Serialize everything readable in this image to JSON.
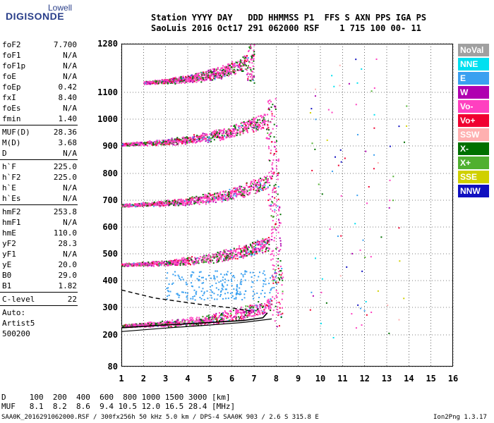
{
  "logo": {
    "top": "Lowell",
    "bottom": "DIGISONDE"
  },
  "header": {
    "line1": "Station YYYY DAY   DDD HHMMSS P1  FFS S AXN PPS IGA PS",
    "line2": "SaoLuis 2016 Oct17 291 062000 RSF    1 715 100 00- 11"
  },
  "scaled": [
    {
      "k": "foF2",
      "v": "7.700"
    },
    {
      "k": "foF1",
      "v": "N/A"
    },
    {
      "k": "foF1p",
      "v": "N/A"
    },
    {
      "k": "foE",
      "v": "N/A"
    },
    {
      "k": "foEp",
      "v": "0.42"
    },
    {
      "k": "fxI",
      "v": "8.40"
    },
    {
      "k": "foEs",
      "v": "N/A"
    },
    {
      "k": "fmin",
      "v": "1.40"
    },
    {
      "sep": true
    },
    {
      "k": "MUF(D)",
      "v": "28.36"
    },
    {
      "k": "M(D)",
      "v": "3.68"
    },
    {
      "k": "D",
      "v": "N/A"
    },
    {
      "sep": true
    },
    {
      "k": "h`F",
      "v": "225.0"
    },
    {
      "k": "h`F2",
      "v": "225.0"
    },
    {
      "k": "h`E",
      "v": "N/A"
    },
    {
      "k": "h`Es",
      "v": "N/A"
    },
    {
      "sep": true
    },
    {
      "k": "hmF2",
      "v": "253.8"
    },
    {
      "k": "hmF1",
      "v": "N/A"
    },
    {
      "k": "hmE",
      "v": "110.0"
    },
    {
      "k": "yF2",
      "v": "28.3"
    },
    {
      "k": "yF1",
      "v": "N/A"
    },
    {
      "k": "yE",
      "v": "20.0"
    },
    {
      "k": "B0",
      "v": "29.0"
    },
    {
      "k": "B1",
      "v": "1.82"
    },
    {
      "sep": true
    },
    {
      "k": "C-level",
      "v": "22"
    },
    {
      "sep": true
    },
    {
      "k": "Auto:",
      "v": ""
    },
    {
      "k": "Artist5",
      "v": ""
    },
    {
      "k": "500200",
      "v": ""
    }
  ],
  "legend": [
    {
      "label": "NoVal",
      "color": "#a0a0a0"
    },
    {
      "label": "NNE",
      "color": "#00e0f0"
    },
    {
      "label": "E",
      "color": "#3aa0f0"
    },
    {
      "label": "W",
      "color": "#b000b0"
    },
    {
      "label": "Vo-",
      "color": "#ff40c0"
    },
    {
      "label": "Vo+",
      "color": "#f00030"
    },
    {
      "label": "SSW",
      "color": "#ffb0b0"
    },
    {
      "label": "X-",
      "color": "#007000"
    },
    {
      "label": "X+",
      "color": "#50b030"
    },
    {
      "label": "SSE",
      "color": "#d0d000"
    },
    {
      "label": "NNW",
      "color": "#1010c0"
    }
  ],
  "bottom_table": {
    "d_line": "D     100  200  400  600  800 1000 1500 3000 [km]",
    "muf_line": "MUF   8.1  8.2  8.6  9.4 10.5 12.0 16.5 28.4 [MHz]"
  },
  "footer": {
    "left": "SAA0K_2016291062000.RSF / 300fx256h 50 kHz 5.0 km / DPS-4 SAA0K 903 / 2.6 S 315.8 E",
    "right": "Ion2Png 1.3.17"
  },
  "chart_data": {
    "type": "scatter",
    "x_ticks": [
      "1",
      "2",
      "3",
      "4",
      "5",
      "6",
      "7",
      "8",
      "9",
      "10",
      "11",
      "12",
      "13",
      "14",
      "15",
      "16"
    ],
    "y_ticks": [
      "80",
      "200",
      "300",
      "400",
      "500",
      "600",
      "700",
      "800",
      "900",
      "1000",
      "1100",
      "1280"
    ],
    "xlim": [
      1,
      16
    ],
    "ylim": [
      80,
      1280
    ],
    "grid": true,
    "traces": [
      {
        "name": "F2 1st hop",
        "fmin": 1.0,
        "fmax": 8.3,
        "h0": 232,
        "hcrit": 300,
        "hmax": 460,
        "color": "#ff40c0"
      },
      {
        "name": "F2 2nd hop",
        "fmin": 1.0,
        "fmax": 8.2,
        "h0": 458,
        "hcrit": 530,
        "hmax": 690,
        "color": "#ff40c0"
      },
      {
        "name": "F2 3rd hop",
        "fmin": 1.0,
        "fmax": 8.1,
        "h0": 680,
        "hcrit": 760,
        "hmax": 900,
        "color": "#ff40c0"
      },
      {
        "name": "F2 4th hop",
        "fmin": 1.0,
        "fmax": 8.0,
        "h0": 905,
        "hcrit": 990,
        "hmax": 1080,
        "color": "#ff40c0"
      },
      {
        "name": "F2 5th hop",
        "fmin": 2.0,
        "fmax": 7.0,
        "h0": 1135,
        "hcrit": 1200,
        "hmax": 1280,
        "color": "#ff40c0"
      }
    ],
    "profile": {
      "f": [
        1.0,
        3.0,
        5.0,
        6.5,
        7.4,
        7.6
      ],
      "h": [
        226,
        236,
        245,
        252,
        262,
        280
      ]
    },
    "profile_lower": {
      "f": [
        1.0,
        3.0,
        5.0,
        6.5,
        7.8
      ],
      "h": [
        212,
        225,
        236,
        245,
        258
      ]
    },
    "dashed": {
      "f": [
        1.0,
        2.5,
        4.5,
        6.0,
        7.0
      ],
      "h": [
        365,
        335,
        312,
        298,
        285
      ]
    }
  }
}
